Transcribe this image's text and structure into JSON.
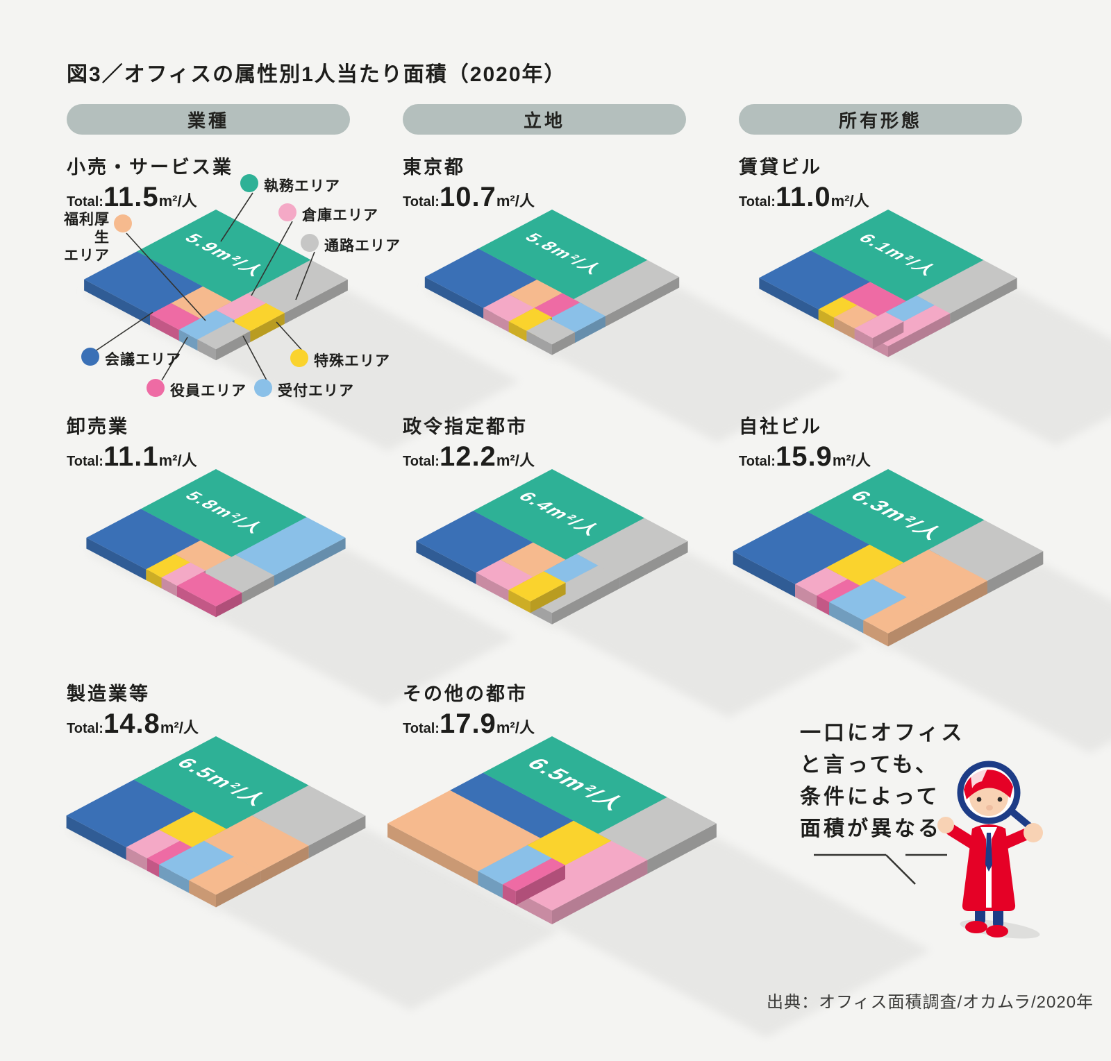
{
  "title": "図3／オフィスの属性別1人当たり面積（2020年）",
  "source": "出典：オフィス面積調査/オカムラ/2020年",
  "columns": [
    {
      "label": "業種"
    },
    {
      "label": "立地"
    },
    {
      "label": "所有形態"
    }
  ],
  "colors": {
    "work": "#2eb196",
    "meeting": "#3a70b6",
    "aisle": "#c6c6c5",
    "welfare": "#f6ba8e",
    "storage": "#f4a9c6",
    "executive": "#ee6ba4",
    "reception": "#8ac0e8",
    "special": "#fad32d",
    "shadow": "#e7e7e5",
    "pill": "#b4bfbd"
  },
  "legend": [
    {
      "key": "work",
      "label": "執務エリア"
    },
    {
      "key": "storage",
      "label": "倉庫エリア"
    },
    {
      "key": "aisle",
      "label": "通路エリア"
    },
    {
      "key": "welfare",
      "label_line1": "福利厚生",
      "label_line2": "エリア"
    },
    {
      "key": "meeting",
      "label": "会議エリア"
    },
    {
      "key": "executive",
      "label": "役員エリア"
    },
    {
      "key": "reception",
      "label": "受付エリア"
    },
    {
      "key": "special",
      "label": "特殊エリア"
    }
  ],
  "speech_bubble": {
    "lines": [
      "一口にオフィス",
      "と言っても、",
      "条件によって",
      "面積が異なる"
    ]
  },
  "chart_data": [
    {
      "type": "isometric-treemap",
      "group": "業種",
      "label": "小売・サービス業",
      "total_label": "Total:",
      "total_value": "11.5",
      "total_unit": "m²/人",
      "work_label": "5.9m²/人",
      "blocks": [
        {
          "area": "work",
          "r": [
            0,
            72,
            0,
            60
          ]
        },
        {
          "area": "aisle",
          "r": [
            72,
            100,
            0,
            48
          ]
        },
        {
          "area": "storage",
          "r": [
            72,
            86,
            48,
            72
          ]
        },
        {
          "area": "special",
          "r": [
            86,
            100,
            48,
            74
          ]
        },
        {
          "area": "reception",
          "r": [
            72,
            86,
            72,
            100
          ]
        },
        {
          "area": "aisle",
          "r": [
            86,
            100,
            74,
            100
          ]
        },
        {
          "area": "meeting",
          "r": [
            0,
            50,
            60,
            100
          ]
        },
        {
          "area": "welfare",
          "r": [
            50,
            72,
            60,
            84
          ]
        },
        {
          "area": "executive",
          "r": [
            50,
            72,
            84,
            100
          ]
        }
      ]
    },
    {
      "type": "isometric-treemap",
      "group": "立地",
      "label": "東京都",
      "total_label": "Total:",
      "total_value": "10.7",
      "total_unit": "m²/人",
      "work_label": "5.8m²/人",
      "blocks": [
        {
          "area": "work",
          "r": [
            0,
            75,
            0,
            58
          ]
        },
        {
          "area": "aisle",
          "r": [
            75,
            100,
            0,
            58
          ]
        },
        {
          "area": "meeting",
          "r": [
            0,
            46,
            58,
            100
          ]
        },
        {
          "area": "welfare",
          "r": [
            46,
            66,
            58,
            80
          ]
        },
        {
          "area": "storage",
          "r": [
            46,
            66,
            80,
            100
          ]
        },
        {
          "area": "executive",
          "r": [
            66,
            80,
            58,
            80
          ]
        },
        {
          "area": "special",
          "r": [
            66,
            80,
            80,
            100
          ]
        },
        {
          "area": "reception",
          "r": [
            80,
            100,
            58,
            82
          ]
        },
        {
          "area": "aisle",
          "r": [
            80,
            100,
            82,
            100
          ]
        }
      ]
    },
    {
      "type": "isometric-treemap",
      "group": "所有形態",
      "label": "賃貸ビル",
      "total_label": "Total:",
      "total_value": "11.0",
      "total_unit": "m²/人",
      "work_label": "6.1m²/人",
      "blocks": [
        {
          "area": "work",
          "r": [
            0,
            74,
            0,
            60
          ]
        },
        {
          "area": "aisle",
          "r": [
            74,
            100,
            0,
            52
          ]
        },
        {
          "area": "meeting",
          "r": [
            0,
            46,
            60,
            100
          ]
        },
        {
          "area": "executive",
          "r": [
            46,
            74,
            60,
            82
          ]
        },
        {
          "area": "special",
          "r": [
            46,
            58,
            82,
            100
          ]
        },
        {
          "area": "welfare",
          "r": [
            58,
            74,
            82,
            100
          ]
        },
        {
          "area": "reception",
          "r": [
            74,
            88,
            52,
            76
          ]
        },
        {
          "area": "storage",
          "r": [
            74,
            88,
            76,
            100
          ]
        },
        {
          "area": "storage",
          "r": [
            88,
            100,
            52,
            100
          ]
        }
      ]
    },
    {
      "type": "isometric-treemap",
      "group": "業種",
      "label": "卸売業",
      "total_label": "Total:",
      "total_value": "11.1",
      "total_unit": "m²/人",
      "work_label": "5.8m²/人",
      "blocks": [
        {
          "area": "work",
          "r": [
            0,
            70,
            0,
            58
          ]
        },
        {
          "area": "reception",
          "r": [
            70,
            100,
            0,
            55
          ]
        },
        {
          "area": "meeting",
          "r": [
            0,
            46,
            58,
            100
          ]
        },
        {
          "area": "welfare",
          "r": [
            46,
            70,
            58,
            78
          ]
        },
        {
          "area": "special",
          "r": [
            46,
            58,
            78,
            100
          ]
        },
        {
          "area": "storage",
          "r": [
            58,
            70,
            78,
            100
          ]
        },
        {
          "area": "aisle",
          "r": [
            70,
            100,
            55,
            80
          ]
        },
        {
          "area": "executive",
          "r": [
            70,
            100,
            80,
            100
          ]
        }
      ]
    },
    {
      "type": "isometric-treemap",
      "group": "立地",
      "label": "政令指定都市",
      "total_label": "Total:",
      "total_value": "12.2",
      "total_unit": "m²/人",
      "work_label": "6.4m²/人",
      "blocks": [
        {
          "area": "work",
          "r": [
            0,
            68,
            0,
            58
          ]
        },
        {
          "area": "aisle",
          "r": [
            68,
            100,
            0,
            50
          ]
        },
        {
          "area": "meeting",
          "r": [
            0,
            44,
            58,
            100
          ]
        },
        {
          "area": "welfare",
          "r": [
            44,
            68,
            58,
            82
          ]
        },
        {
          "area": "storage",
          "r": [
            44,
            68,
            82,
            100
          ]
        },
        {
          "area": "reception",
          "r": [
            68,
            84,
            50,
            74
          ]
        },
        {
          "area": "special",
          "r": [
            68,
            84,
            74,
            100
          ]
        },
        {
          "area": "aisle",
          "r": [
            84,
            100,
            50,
            100
          ]
        }
      ]
    },
    {
      "type": "isometric-treemap",
      "group": "所有形態",
      "label": "自社ビル",
      "total_label": "Total:",
      "total_value": "15.9",
      "total_unit": "m²/人",
      "work_label": "6.3m²/人",
      "blocks": [
        {
          "area": "work",
          "r": [
            0,
            62,
            0,
            52
          ]
        },
        {
          "area": "aisle",
          "r": [
            62,
            100,
            0,
            36
          ]
        },
        {
          "area": "welfare",
          "r": [
            62,
            100,
            36,
            72
          ]
        },
        {
          "area": "meeting",
          "r": [
            0,
            40,
            52,
            100
          ]
        },
        {
          "area": "special",
          "r": [
            40,
            62,
            52,
            80
          ]
        },
        {
          "area": "storage",
          "r": [
            40,
            54,
            80,
            100
          ]
        },
        {
          "area": "executive",
          "r": [
            54,
            62,
            80,
            100
          ]
        },
        {
          "area": "reception",
          "r": [
            62,
            84,
            72,
            100
          ]
        },
        {
          "area": "welfare",
          "r": [
            84,
            100,
            72,
            100
          ]
        }
      ]
    },
    {
      "type": "isometric-treemap",
      "group": "業種",
      "label": "製造業等",
      "total_label": "Total:",
      "total_value": "14.8",
      "total_unit": "m²/人",
      "work_label": "6.5m²/人",
      "blocks": [
        {
          "area": "work",
          "r": [
            0,
            62,
            0,
            55
          ]
        },
        {
          "area": "aisle",
          "r": [
            62,
            100,
            0,
            38
          ]
        },
        {
          "area": "welfare",
          "r": [
            62,
            100,
            38,
            70
          ]
        },
        {
          "area": "meeting",
          "r": [
            0,
            40,
            55,
            100
          ]
        },
        {
          "area": "special",
          "r": [
            40,
            62,
            55,
            78
          ]
        },
        {
          "area": "storage",
          "r": [
            40,
            54,
            78,
            100
          ]
        },
        {
          "area": "executive",
          "r": [
            54,
            62,
            78,
            100
          ]
        },
        {
          "area": "reception",
          "r": [
            62,
            82,
            70,
            100
          ]
        },
        {
          "area": "welfare",
          "r": [
            82,
            100,
            70,
            100
          ]
        }
      ]
    },
    {
      "type": "isometric-treemap",
      "group": "立地",
      "label": "その他の都市",
      "total_label": "Total:",
      "total_value": "17.9",
      "total_unit": "m²/人",
      "work_label": "6.5m²/人",
      "blocks": [
        {
          "area": "work",
          "r": [
            0,
            70,
            0,
            42
          ]
        },
        {
          "area": "aisle",
          "r": [
            70,
            100,
            0,
            42
          ]
        },
        {
          "area": "meeting",
          "r": [
            0,
            55,
            42,
            62
          ]
        },
        {
          "area": "welfare",
          "r": [
            0,
            55,
            62,
            100
          ]
        },
        {
          "area": "special",
          "r": [
            55,
            78,
            42,
            70
          ]
        },
        {
          "area": "reception",
          "r": [
            55,
            70,
            70,
            100
          ]
        },
        {
          "area": "executive",
          "r": [
            70,
            78,
            70,
            100
          ]
        },
        {
          "area": "storage",
          "r": [
            78,
            100,
            42,
            100
          ]
        }
      ]
    }
  ]
}
